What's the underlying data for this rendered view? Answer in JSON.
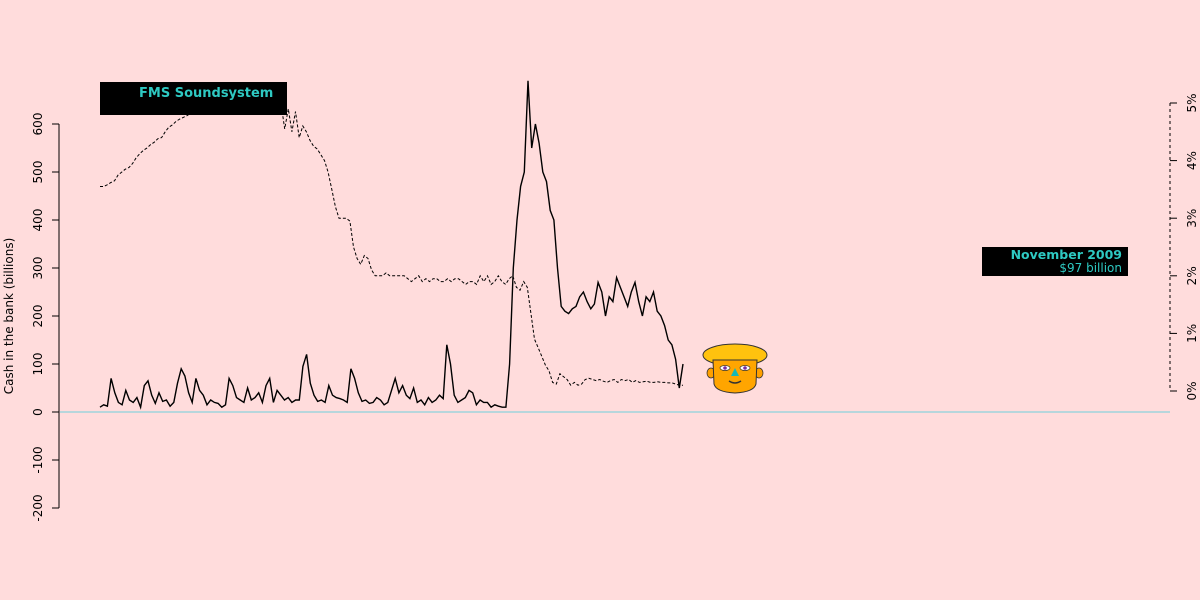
{
  "title": "FMS Soundsystem",
  "callout": {
    "title": "November 2009",
    "value": "$97 billion"
  },
  "colors": {
    "background": "#ffdcdc",
    "zero_line": "#9fd3dc",
    "accent_text": "#2ec9c2",
    "cash_line": "#000000",
    "rate_line": "#000000"
  },
  "icons": {
    "mascot": "cartoon-face-icon"
  },
  "chart_data": {
    "type": "line",
    "title": "FMS Soundsystem",
    "ylabel": "Cash in the bank (billions)",
    "ylim": [
      -200,
      600
    ],
    "yticks": [
      "-200",
      "-100",
      "0",
      "100",
      "200",
      "300",
      "400",
      "500",
      "600"
    ],
    "y2lim": [
      0,
      5
    ],
    "y2ticks": [
      "0%",
      "1%",
      "2%",
      "3%",
      "4%",
      "5%"
    ],
    "grid": false,
    "series": [
      {
        "style": "solid",
        "axis": "left",
        "values": [
          10,
          15,
          12,
          70,
          40,
          20,
          15,
          45,
          25,
          20,
          30,
          10,
          55,
          65,
          35,
          18,
          40,
          22,
          25,
          12,
          20,
          60,
          90,
          75,
          40,
          20,
          70,
          45,
          35,
          15,
          25,
          20,
          18,
          10,
          15,
          70,
          55,
          30,
          25,
          20,
          50,
          25,
          30,
          40,
          20,
          55,
          70,
          20,
          45,
          35,
          25,
          30,
          20,
          25,
          25,
          95,
          120,
          60,
          35,
          22,
          25,
          20,
          55,
          35,
          30,
          28,
          25,
          20,
          90,
          70,
          40,
          22,
          25,
          18,
          20,
          30,
          25,
          15,
          20,
          45,
          70,
          40,
          55,
          35,
          28,
          50,
          20,
          25,
          15,
          30,
          20,
          25,
          35,
          28,
          140,
          100,
          35,
          20,
          25,
          30,
          45,
          40,
          15,
          25,
          20,
          20,
          10,
          15,
          12,
          10,
          10,
          100,
          300,
          400,
          470,
          500,
          690,
          550,
          600,
          560,
          500,
          480,
          420,
          400,
          300,
          220,
          210,
          205,
          215,
          220,
          240,
          250,
          230,
          215,
          225,
          270,
          250,
          200,
          240,
          230,
          280,
          260,
          240,
          220,
          250,
          270,
          230,
          200,
          240,
          230,
          250,
          210,
          200,
          180,
          150,
          140,
          110,
          50,
          100
        ]
      },
      {
        "style": "dashed",
        "axis": "right",
        "values": [
          3.55,
          3.55,
          3.58,
          3.62,
          3.65,
          3.75,
          3.8,
          3.85,
          3.88,
          3.95,
          4.05,
          4.12,
          4.18,
          4.22,
          4.28,
          4.32,
          4.38,
          4.4,
          4.5,
          4.58,
          4.62,
          4.68,
          4.72,
          4.75,
          4.78,
          4.82,
          4.85,
          4.88,
          4.92,
          4.92,
          4.9,
          4.92,
          4.94,
          4.95,
          4.95,
          4.96,
          4.95,
          4.94,
          4.95,
          4.95,
          4.96,
          4.96,
          4.97,
          4.97,
          4.96,
          4.97,
          4.98,
          4.97,
          4.98,
          4.98,
          4.98,
          4.55,
          4.9,
          4.5,
          4.85,
          4.4,
          4.6,
          4.5,
          4.35,
          4.25,
          4.2,
          4.1,
          4.0,
          3.8,
          3.5,
          3.2,
          3.0,
          3.0,
          3.0,
          2.95,
          2.5,
          2.3,
          2.2,
          2.35,
          2.3,
          2.1,
          2.0,
          2.0,
          2.0,
          2.05,
          2.0,
          2.0,
          2.0,
          2.0,
          2.0,
          1.95,
          1.9,
          1.95,
          2.0,
          1.9,
          1.95,
          1.9,
          1.95,
          1.95,
          1.9,
          1.9,
          1.95,
          1.9,
          1.95,
          1.95,
          1.9,
          1.85,
          1.9,
          1.9,
          1.85,
          2.0,
          1.9,
          2.0,
          1.85,
          1.9,
          2.0,
          1.9,
          1.85,
          1.95,
          2.0,
          1.8,
          1.75,
          1.9,
          1.8,
          1.35,
          0.9,
          0.75,
          0.6,
          0.45,
          0.35,
          0.15,
          0.12,
          0.3,
          0.25,
          0.2,
          0.1,
          0.15,
          0.1,
          0.12,
          0.2,
          0.22,
          0.2,
          0.18,
          0.2,
          0.17,
          0.15,
          0.18,
          0.2,
          0.15,
          0.2,
          0.18,
          0.2,
          0.15,
          0.18,
          0.15,
          0.16,
          0.17,
          0.15,
          0.15,
          0.16,
          0.15,
          0.15,
          0.14,
          0.14,
          0.12,
          0.1,
          0.1
        ]
      }
    ],
    "annotations": [
      {
        "label": "November 2009",
        "value": "$97 billion"
      }
    ]
  }
}
